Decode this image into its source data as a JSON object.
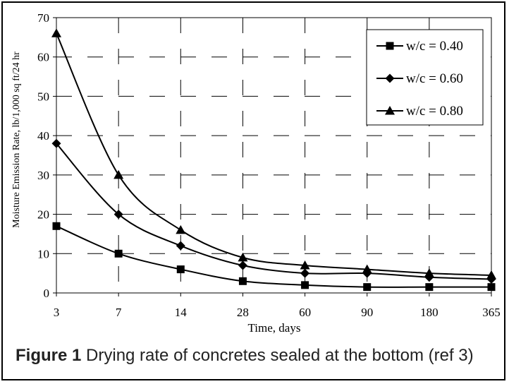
{
  "caption": {
    "label": "Figure 1",
    "text": "Drying rate of concretes sealed at the bottom (ref 3)"
  },
  "chart_data": {
    "type": "line",
    "title": "",
    "xlabel": "Time, days",
    "ylabel": "Moisture Emission Rate, lb/1,000 sq ft/24 hr",
    "categories": [
      "3",
      "7",
      "14",
      "28",
      "60",
      "90",
      "180",
      "365"
    ],
    "ylim": [
      0,
      70
    ],
    "yticks": [
      0,
      10,
      20,
      30,
      40,
      50,
      60,
      70
    ],
    "grid": "dashed",
    "legend_position": "top-right",
    "series": [
      {
        "name": "w/c = 0.40",
        "marker": "square",
        "values": [
          17,
          10,
          6,
          3,
          2,
          1.5,
          1.5,
          1.5
        ]
      },
      {
        "name": "w/c = 0.60",
        "marker": "diamond",
        "values": [
          38,
          20,
          12,
          7,
          5,
          5,
          4,
          3.5
        ]
      },
      {
        "name": "w/c = 0.80",
        "marker": "triangle",
        "values": [
          66,
          30,
          16,
          9,
          7,
          6,
          5,
          4.5
        ]
      }
    ],
    "colors": {
      "line": "#000000",
      "grid": "#000000"
    }
  }
}
